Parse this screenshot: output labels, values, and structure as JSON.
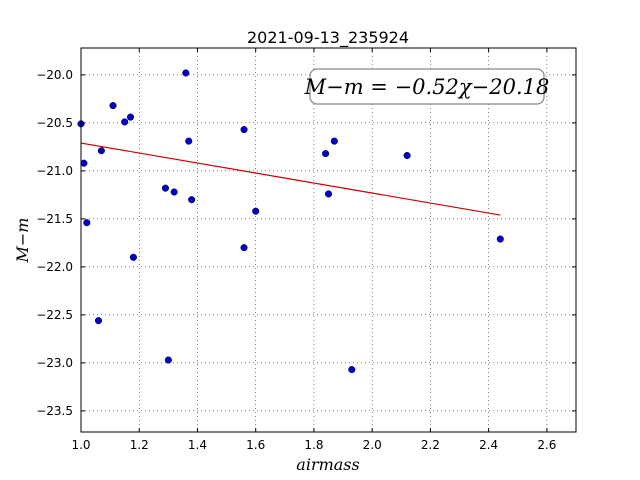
{
  "chart_data": {
    "type": "scatter",
    "title": "2021-09-13_235924",
    "xlabel": "airmass",
    "ylabel": "M−m",
    "xlim": [
      1.0,
      2.7
    ],
    "ylim": [
      -23.72,
      -19.72
    ],
    "xticks": [
      "1.0",
      "1.2",
      "1.4",
      "1.6",
      "1.8",
      "2.0",
      "2.2",
      "2.4",
      "2.6"
    ],
    "yticks": [
      "−20.0",
      "−20.5",
      "−21.0",
      "−21.5",
      "−22.0",
      "−22.5",
      "−23.0",
      "−23.5"
    ],
    "grid": true,
    "marker_color": "#0000cc",
    "fit_color": "#cc0000",
    "annotation": "M−m = −0.52χ−20.18",
    "annotation_location": "top-right",
    "points": [
      {
        "x": 1.0,
        "y": -20.51
      },
      {
        "x": 1.01,
        "y": -20.92
      },
      {
        "x": 1.02,
        "y": -21.54
      },
      {
        "x": 1.06,
        "y": -22.56
      },
      {
        "x": 1.07,
        "y": -20.79
      },
      {
        "x": 1.11,
        "y": -20.32
      },
      {
        "x": 1.15,
        "y": -20.49
      },
      {
        "x": 1.17,
        "y": -20.44
      },
      {
        "x": 1.18,
        "y": -21.9
      },
      {
        "x": 1.29,
        "y": -21.18
      },
      {
        "x": 1.3,
        "y": -22.97
      },
      {
        "x": 1.32,
        "y": -21.22
      },
      {
        "x": 1.36,
        "y": -19.98
      },
      {
        "x": 1.37,
        "y": -20.69
      },
      {
        "x": 1.38,
        "y": -21.3
      },
      {
        "x": 1.56,
        "y": -20.57
      },
      {
        "x": 1.56,
        "y": -21.8
      },
      {
        "x": 1.6,
        "y": -21.42
      },
      {
        "x": 1.84,
        "y": -20.82
      },
      {
        "x": 1.85,
        "y": -21.24
      },
      {
        "x": 1.87,
        "y": -20.69
      },
      {
        "x": 1.93,
        "y": -23.07
      },
      {
        "x": 2.12,
        "y": -20.84
      },
      {
        "x": 2.44,
        "y": -21.71
      }
    ],
    "fit_line": {
      "x": [
        1.0,
        2.44
      ],
      "y": [
        -20.71,
        -21.46
      ]
    }
  }
}
